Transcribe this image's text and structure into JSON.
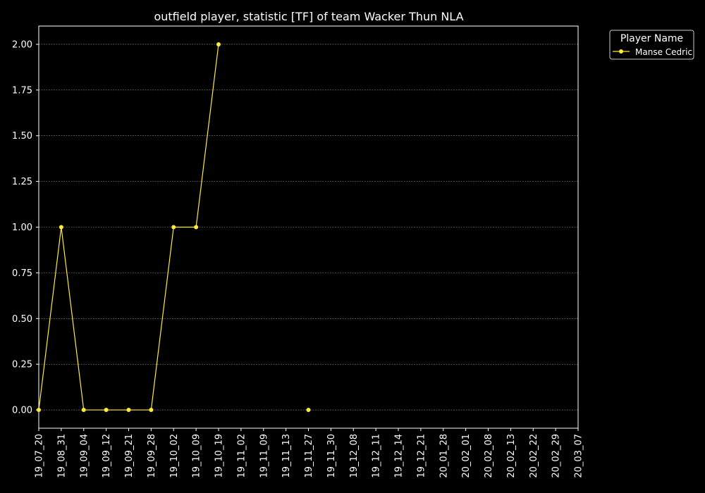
{
  "chart_data": {
    "type": "line",
    "title": "outfield player, statistic [TF] of team Wacker Thun NLA",
    "xlabel": "",
    "ylabel": "",
    "categories": [
      "19_07_20",
      "19_08_31",
      "19_09_04",
      "19_09_12",
      "19_09_21",
      "19_09_28",
      "19_10_02",
      "19_10_09",
      "19_10_19",
      "19_11_02",
      "19_11_09",
      "19_11_13",
      "19_11_27",
      "19_11_30",
      "19_12_08",
      "19_12_11",
      "19_12_14",
      "19_12_21",
      "20_01_28",
      "20_02_01",
      "20_02_08",
      "20_02_13",
      "20_02_22",
      "20_02_29",
      "20_03_07"
    ],
    "yticks": [
      "0.00",
      "0.25",
      "0.50",
      "0.75",
      "1.00",
      "1.25",
      "1.50",
      "1.75",
      "2.00"
    ],
    "ylim": [
      -0.1,
      2.1
    ],
    "grid": true,
    "legend": {
      "title": "Player Name",
      "placement": "top-right outside"
    },
    "series": [
      {
        "name": "Manse Cedric",
        "color": "#ffeb3b",
        "values": [
          0,
          1,
          0,
          0,
          0,
          0,
          1,
          1,
          2,
          null,
          null,
          null,
          0,
          null,
          null,
          null,
          null,
          null,
          null,
          null,
          null,
          null,
          null,
          null,
          null
        ]
      }
    ]
  }
}
